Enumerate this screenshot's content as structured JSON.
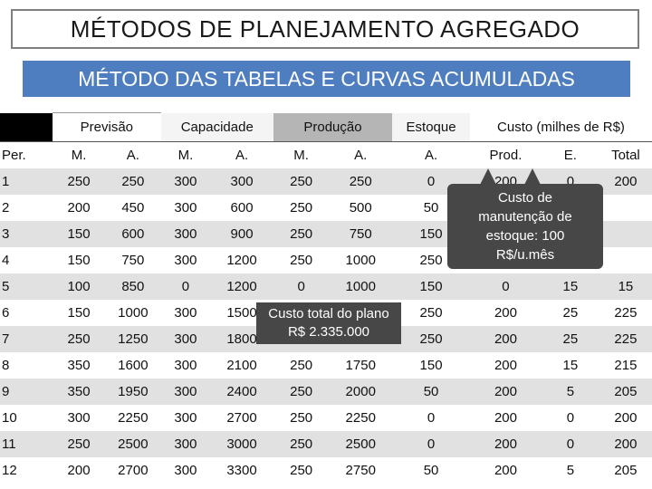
{
  "title": "MÉTODOS DE PLANEJAMENTO AGREGADO",
  "subtitle": "MÉTODO DAS TABELAS E CURVAS ACUMULADAS",
  "header_groups": {
    "previsao": "Previsão",
    "capacidade": "Capacidade",
    "producao": "Produção",
    "estoque": "Estoque",
    "custo": "Custo (milhes de R$)"
  },
  "columns": [
    "Per.",
    "M.",
    "A.",
    "M.",
    "A.",
    "M.",
    "A.",
    "A.",
    "Prod.",
    "E.",
    "Total"
  ],
  "rows": [
    [
      "1",
      "250",
      "250",
      "300",
      "300",
      "250",
      "250",
      "0",
      "200",
      "0",
      "200"
    ],
    [
      "2",
      "200",
      "450",
      "300",
      "600",
      "250",
      "500",
      "50",
      "",
      "",
      ""
    ],
    [
      "3",
      "150",
      "600",
      "300",
      "900",
      "250",
      "750",
      "150",
      "",
      "",
      ""
    ],
    [
      "4",
      "150",
      "750",
      "300",
      "1200",
      "250",
      "1000",
      "250",
      "",
      "",
      ""
    ],
    [
      "5",
      "100",
      "850",
      "0",
      "1200",
      "0",
      "1000",
      "150",
      "0",
      "15",
      "15"
    ],
    [
      "6",
      "150",
      "1000",
      "300",
      "1500",
      "",
      "",
      "250",
      "200",
      "25",
      "225"
    ],
    [
      "7",
      "250",
      "1250",
      "300",
      "1800",
      "",
      "",
      "250",
      "200",
      "25",
      "225"
    ],
    [
      "8",
      "350",
      "1600",
      "300",
      "2100",
      "250",
      "1750",
      "150",
      "200",
      "15",
      "215"
    ],
    [
      "9",
      "350",
      "1950",
      "300",
      "2400",
      "250",
      "2000",
      "50",
      "200",
      "5",
      "205"
    ],
    [
      "10",
      "300",
      "2250",
      "300",
      "2700",
      "250",
      "2250",
      "0",
      "200",
      "0",
      "200"
    ],
    [
      "11",
      "250",
      "2500",
      "300",
      "3000",
      "250",
      "2500",
      "0",
      "200",
      "0",
      "200"
    ],
    [
      "12",
      "200",
      "2700",
      "300",
      "3300",
      "250",
      "2750",
      "50",
      "200",
      "5",
      "205"
    ]
  ],
  "callouts": {
    "inventory_cost": [
      "Custo de",
      "manutenção de",
      "estoque: 100",
      "R$/u.mês"
    ],
    "total_cost": [
      "Custo total do plano",
      "R$ 2.335.000"
    ]
  }
}
